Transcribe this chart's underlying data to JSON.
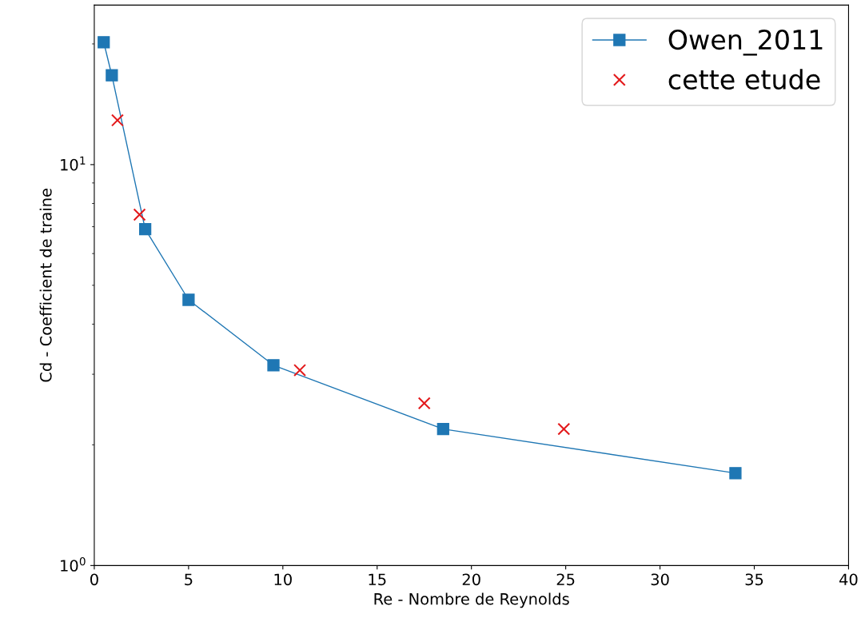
{
  "chart_data": {
    "type": "line",
    "xlabel": "Re - Nombre de Reynolds",
    "ylabel": "Cd - Coefficient de traine",
    "xlim": [
      0,
      40
    ],
    "xticks": [
      0,
      5,
      10,
      15,
      20,
      25,
      30,
      35,
      40
    ],
    "ylim": [
      1,
      25
    ],
    "yticks": [
      {
        "value": 1,
        "label": "10$^{0}$"
      },
      {
        "value": 10,
        "label": "10$^{1}$"
      }
    ],
    "log": "y",
    "grid": false,
    "legend": "top right",
    "series": [
      {
        "name": "Owen_2011",
        "color": "#1f77b4",
        "marker": "square",
        "line_style": "solid",
        "x": [
          0.5,
          0.93,
          2.7,
          5.0,
          9.5,
          18.5,
          34.0
        ],
        "values": [
          20.2,
          16.7,
          6.9,
          4.6,
          3.16,
          2.19,
          1.7
        ]
      },
      {
        "name": "cette etude",
        "type": "scatter",
        "color": "#e31a1c",
        "marker": "cross",
        "x": [
          1.23,
          2.4,
          10.9,
          17.5,
          24.9
        ],
        "values": [
          12.9,
          7.5,
          3.07,
          2.54,
          2.19
        ]
      }
    ]
  }
}
